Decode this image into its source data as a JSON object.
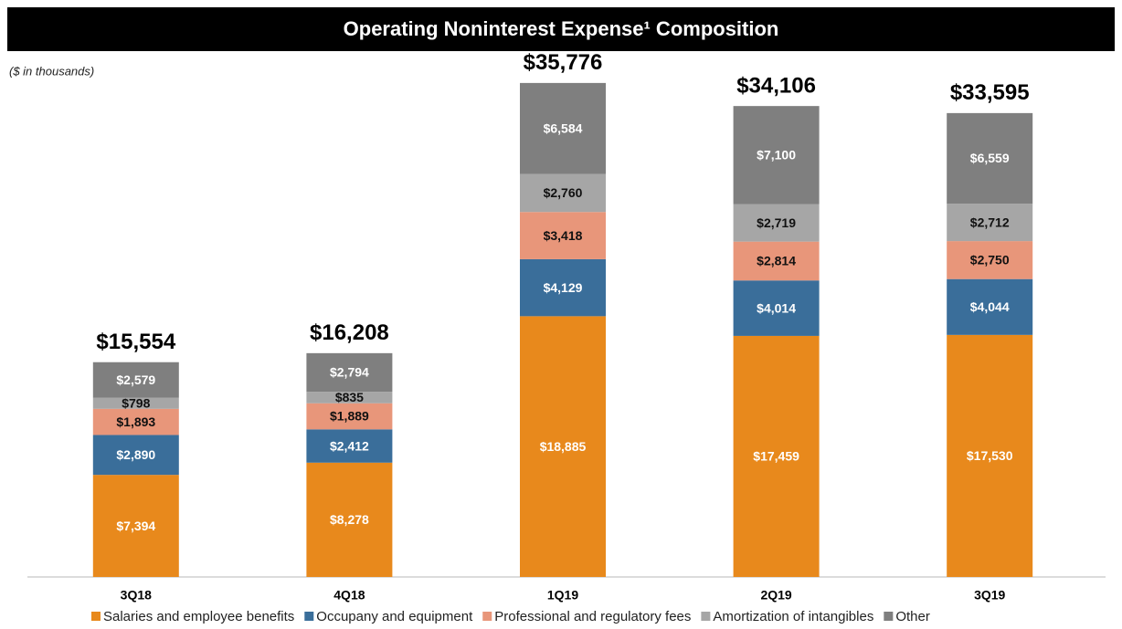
{
  "chart_data": {
    "type": "stacked_bar",
    "title": "Operating Noninterest Expense¹ Composition",
    "subtitle": "($ in thousands)",
    "categories": [
      "3Q18",
      "4Q18",
      "1Q19",
      "2Q19",
      "3Q19"
    ],
    "series": [
      {
        "name": "Salaries and employee benefits",
        "color": "#e8891c",
        "label_color": "#ffffff",
        "values": [
          7394,
          8278,
          18885,
          17459,
          17530
        ],
        "value_labels": [
          "$7,394",
          "$8,278",
          "$18,885",
          "$17,459",
          "$17,530"
        ]
      },
      {
        "name": "Occupany and equipment",
        "color": "#3a6e9a",
        "label_color": "#ffffff",
        "values": [
          2890,
          2412,
          4129,
          4014,
          4044
        ],
        "value_labels": [
          "$2,890",
          "$2,412",
          "$4,129",
          "$4,014",
          "$4,044"
        ]
      },
      {
        "name": "Professional and regulatory fees",
        "color": "#e8967a",
        "label_color": "#111111",
        "values": [
          1893,
          1889,
          3418,
          2814,
          2750
        ],
        "value_labels": [
          "$1,893",
          "$1,889",
          "$3,418",
          "$2,814",
          "$2,750"
        ]
      },
      {
        "name": "Amortization of intangibles",
        "color": "#a6a6a6",
        "label_color": "#111111",
        "values": [
          798,
          835,
          2760,
          2719,
          2712
        ],
        "value_labels": [
          "$798",
          "$835",
          "$2,760",
          "$2,719",
          "$2,712"
        ]
      },
      {
        "name": "Other",
        "color": "#7f7f7f",
        "label_color": "#ffffff",
        "values": [
          2579,
          2794,
          6584,
          7100,
          6559
        ],
        "value_labels": [
          "$2,579",
          "$2,794",
          "$6,584",
          "$7,100",
          "$6,559"
        ]
      }
    ],
    "totals": [
      15554,
      16208,
      35776,
      34106,
      33595
    ],
    "total_labels": [
      "$15,554",
      "$16,208",
      "$35,776",
      "$34,106",
      "$33,595"
    ],
    "ylim": [
      0,
      40000
    ],
    "legend": "bottom"
  }
}
